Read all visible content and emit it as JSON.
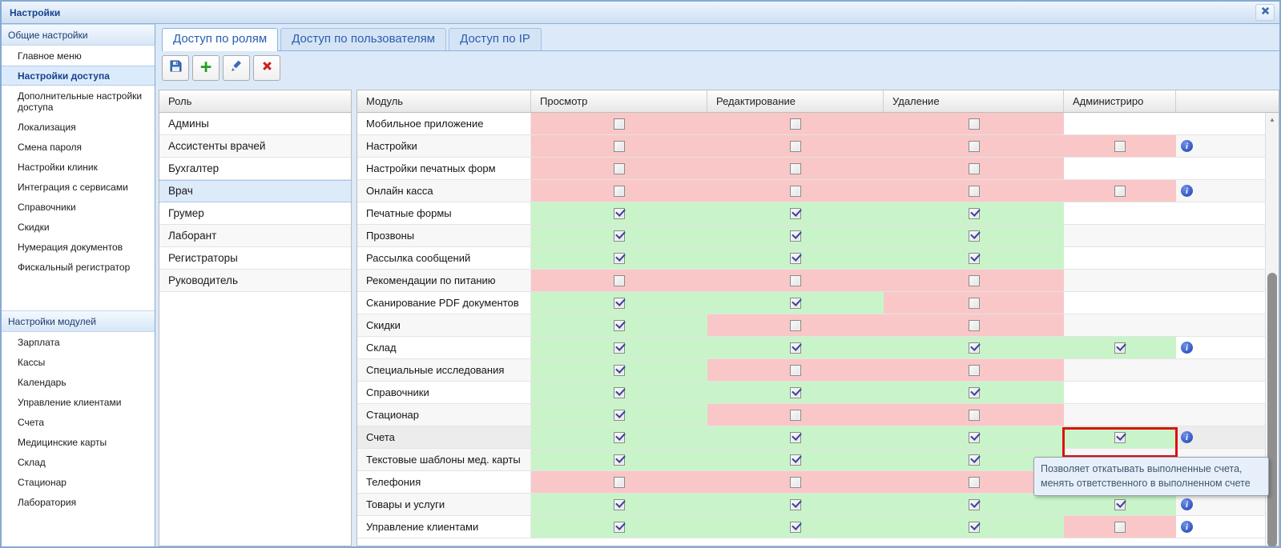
{
  "window": {
    "title": "Настройки"
  },
  "sidebar": {
    "sections": [
      {
        "header": "Общие настройки",
        "items": [
          {
            "label": "Главное меню",
            "selected": false
          },
          {
            "label": "Настройки доступа",
            "selected": true
          },
          {
            "label": "Дополнительные настройки доступа",
            "selected": false
          },
          {
            "label": "Локализация",
            "selected": false
          },
          {
            "label": "Смена пароля",
            "selected": false
          },
          {
            "label": "Настройки клиник",
            "selected": false
          },
          {
            "label": "Интеграция с сервисами",
            "selected": false
          },
          {
            "label": "Справочники",
            "selected": false
          },
          {
            "label": "Скидки",
            "selected": false
          },
          {
            "label": "Нумерация документов",
            "selected": false
          },
          {
            "label": "Фискальный регистратор",
            "selected": false
          }
        ]
      },
      {
        "header": "Настройки модулей",
        "items": [
          {
            "label": "Зарплата",
            "selected": false
          },
          {
            "label": "Кассы",
            "selected": false
          },
          {
            "label": "Календарь",
            "selected": false
          },
          {
            "label": "Управление клиентами",
            "selected": false
          },
          {
            "label": "Счета",
            "selected": false
          },
          {
            "label": "Медицинские карты",
            "selected": false
          },
          {
            "label": "Склад",
            "selected": false
          },
          {
            "label": "Стационар",
            "selected": false
          },
          {
            "label": "Лаборатория",
            "selected": false
          }
        ]
      }
    ]
  },
  "tabs": [
    {
      "name": "roles",
      "label": "Доступ по ролям",
      "active": true
    },
    {
      "name": "users",
      "label": "Доступ по пользователям",
      "active": false
    },
    {
      "name": "ip",
      "label": "Доступ по IP",
      "active": false
    }
  ],
  "toolbar": [
    {
      "name": "save",
      "icon": "floppy-icon"
    },
    {
      "name": "add",
      "icon": "plus-icon"
    },
    {
      "name": "edit",
      "icon": "pencil-icon"
    },
    {
      "name": "delete",
      "icon": "x-icon"
    }
  ],
  "roles": {
    "column_header": "Роль",
    "items": [
      {
        "label": "Админы",
        "selected": false
      },
      {
        "label": "Ассистенты врачей",
        "selected": false
      },
      {
        "label": "Бухгалтер",
        "selected": false
      },
      {
        "label": "Врач",
        "selected": true
      },
      {
        "label": "Грумер",
        "selected": false
      },
      {
        "label": "Лаборант",
        "selected": false
      },
      {
        "label": "Регистраторы",
        "selected": false
      },
      {
        "label": "Руководитель",
        "selected": false
      }
    ]
  },
  "permissions": {
    "columns": [
      "Модуль",
      "Просмотр",
      "Редактирование",
      "Удаление",
      "Администриро",
      ""
    ],
    "rows": [
      {
        "module": "Мобильное приложение",
        "view": "off",
        "edit": "off",
        "delete": "off",
        "admin": "none",
        "info": false,
        "selected": false,
        "admin_highlight": false
      },
      {
        "module": "Настройки",
        "view": "off",
        "edit": "off",
        "delete": "off",
        "admin": "off",
        "info": true,
        "selected": false,
        "admin_highlight": false
      },
      {
        "module": "Настройки печатных форм",
        "view": "off",
        "edit": "off",
        "delete": "off",
        "admin": "none",
        "info": false,
        "selected": false,
        "admin_highlight": false
      },
      {
        "module": "Онлайн касса",
        "view": "off",
        "edit": "off",
        "delete": "off",
        "admin": "off",
        "info": true,
        "selected": false,
        "admin_highlight": false
      },
      {
        "module": "Печатные формы",
        "view": "on",
        "edit": "on",
        "delete": "on",
        "admin": "none",
        "info": false,
        "selected": false,
        "admin_highlight": false
      },
      {
        "module": "Прозвоны",
        "view": "on",
        "edit": "on",
        "delete": "on",
        "admin": "none",
        "info": false,
        "selected": false,
        "admin_highlight": false
      },
      {
        "module": "Рассылка сообщений",
        "view": "on",
        "edit": "on",
        "delete": "on",
        "admin": "none",
        "info": false,
        "selected": false,
        "admin_highlight": false
      },
      {
        "module": "Рекомендации по питанию",
        "view": "off",
        "edit": "off",
        "delete": "off",
        "admin": "none",
        "info": false,
        "selected": false,
        "admin_highlight": false
      },
      {
        "module": "Сканирование PDF документов",
        "view": "on",
        "edit": "on",
        "delete": "off",
        "admin": "none",
        "info": false,
        "selected": false,
        "admin_highlight": false
      },
      {
        "module": "Скидки",
        "view": "on",
        "edit": "off",
        "delete": "off",
        "admin": "none",
        "info": false,
        "selected": false,
        "admin_highlight": false
      },
      {
        "module": "Склад",
        "view": "on",
        "edit": "on",
        "delete": "on",
        "admin": "on",
        "info": true,
        "selected": false,
        "admin_highlight": false
      },
      {
        "module": "Специальные исследования",
        "view": "on",
        "edit": "off",
        "delete": "off",
        "admin": "none",
        "info": false,
        "selected": false,
        "admin_highlight": false
      },
      {
        "module": "Справочники",
        "view": "on",
        "edit": "on",
        "delete": "on",
        "admin": "none",
        "info": false,
        "selected": false,
        "admin_highlight": false
      },
      {
        "module": "Стационар",
        "view": "on",
        "edit": "off",
        "delete": "off",
        "admin": "none",
        "info": false,
        "selected": false,
        "admin_highlight": false
      },
      {
        "module": "Счета",
        "view": "on",
        "edit": "on",
        "delete": "on",
        "admin": "on",
        "info": true,
        "selected": true,
        "admin_highlight": true
      },
      {
        "module": "Текстовые шаблоны мед. карты",
        "view": "on",
        "edit": "on",
        "delete": "on",
        "admin": "none",
        "info": false,
        "selected": false,
        "admin_highlight": false
      },
      {
        "module": "Телефония",
        "view": "off",
        "edit": "off",
        "delete": "off",
        "admin": "none",
        "info": false,
        "selected": false,
        "admin_highlight": false
      },
      {
        "module": "Товары и услуги",
        "view": "on",
        "edit": "on",
        "delete": "on",
        "admin": "on",
        "info": true,
        "selected": false,
        "admin_highlight": false
      },
      {
        "module": "Управление клиентами",
        "view": "on",
        "edit": "on",
        "delete": "on",
        "admin": "off",
        "info": true,
        "selected": false,
        "admin_highlight": false
      }
    ]
  },
  "tooltip": {
    "text": "Позволяет откатывать выполненные счета, менять ответственного в выполненном счете"
  },
  "colors": {
    "allowed": "#c9f4c9",
    "denied": "#f9c7c7",
    "highlight": "#dd1111",
    "accent": "#15428b"
  }
}
